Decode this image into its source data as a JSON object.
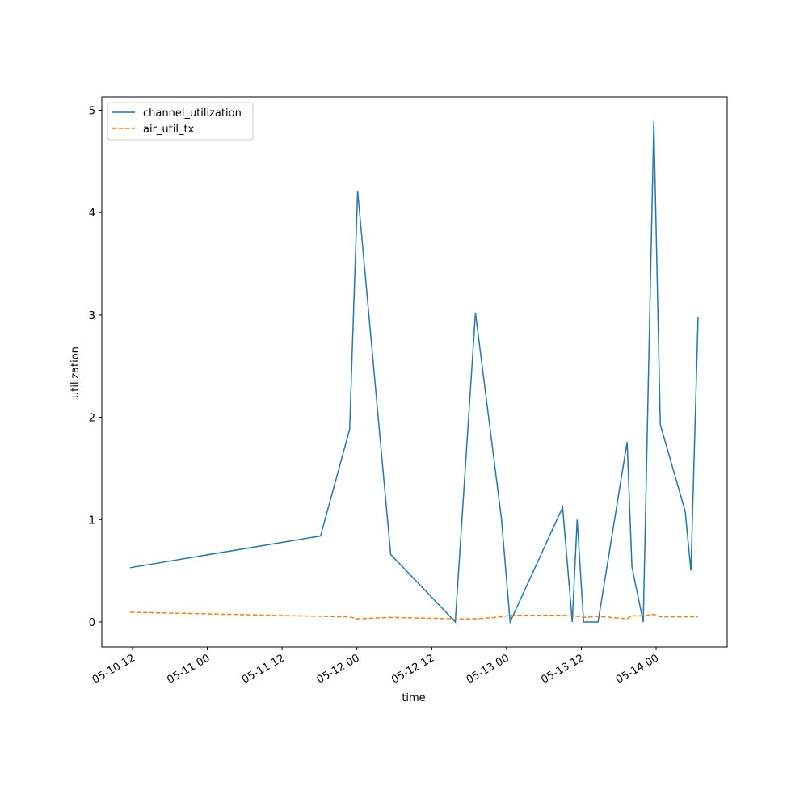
{
  "chart_data": {
    "type": "line",
    "xlabel": "time",
    "ylabel": "utilization",
    "x": [
      "05-10 11:37",
      "05-11 18:10",
      "05-11 22:50",
      "05-12 00:07",
      "05-12 05:25",
      "05-12 15:47",
      "05-12 19:01",
      "05-12 23:10",
      "05-13 00:35",
      "05-13 09:00",
      "05-13 10:33",
      "05-13 11:20",
      "05-13 12:22",
      "05-13 14:41",
      "05-13 19:21",
      "05-13 20:07",
      "05-13 21:56",
      "05-13 23:38",
      "05-14 00:40",
      "05-14 04:40",
      "05-14 05:35",
      "05-14 06:44"
    ],
    "series": [
      {
        "name": "channel_utilization",
        "color": "#1f77b4",
        "linestyle": "solid",
        "values": [
          0.53,
          0.84,
          1.88,
          4.21,
          0.66,
          0,
          3.02,
          1.02,
          0,
          1.12,
          0,
          1.0,
          0,
          0,
          1.76,
          0.54,
          0,
          4.89,
          1.93,
          1.08,
          0.5,
          2.98
        ]
      },
      {
        "name": "air_util_tx",
        "color": "#ff7f0e",
        "linestyle": "dashed",
        "values": [
          0.095,
          0.055,
          0.05,
          0.03,
          0.045,
          0.03,
          0.03,
          0.05,
          0.065,
          0.065,
          0.06,
          0.055,
          0.045,
          0.055,
          0.03,
          0.06,
          0.06,
          0.075,
          0.05,
          0.05,
          0.05,
          0.05
        ]
      }
    ],
    "xlim": [
      "05-10 07:05",
      "05-14 11:24"
    ],
    "xticks": [
      {
        "value": "05-10 12:00",
        "label": "05-10 12"
      },
      {
        "value": "05-11 00:00",
        "label": "05-11 00"
      },
      {
        "value": "05-11 12:00",
        "label": "05-11 12"
      },
      {
        "value": "05-12 00:00",
        "label": "05-12 00"
      },
      {
        "value": "05-12 12:00",
        "label": "05-12 12"
      },
      {
        "value": "05-13 00:00",
        "label": "05-13 00"
      },
      {
        "value": "05-13 12:00",
        "label": "05-13 12"
      },
      {
        "value": "05-14 00:00",
        "label": "05-14 00"
      }
    ],
    "ylim": [
      -0.245,
      5.13
    ],
    "yticks": [
      0,
      1,
      2,
      3,
      4,
      5
    ],
    "legend": "upper left"
  }
}
